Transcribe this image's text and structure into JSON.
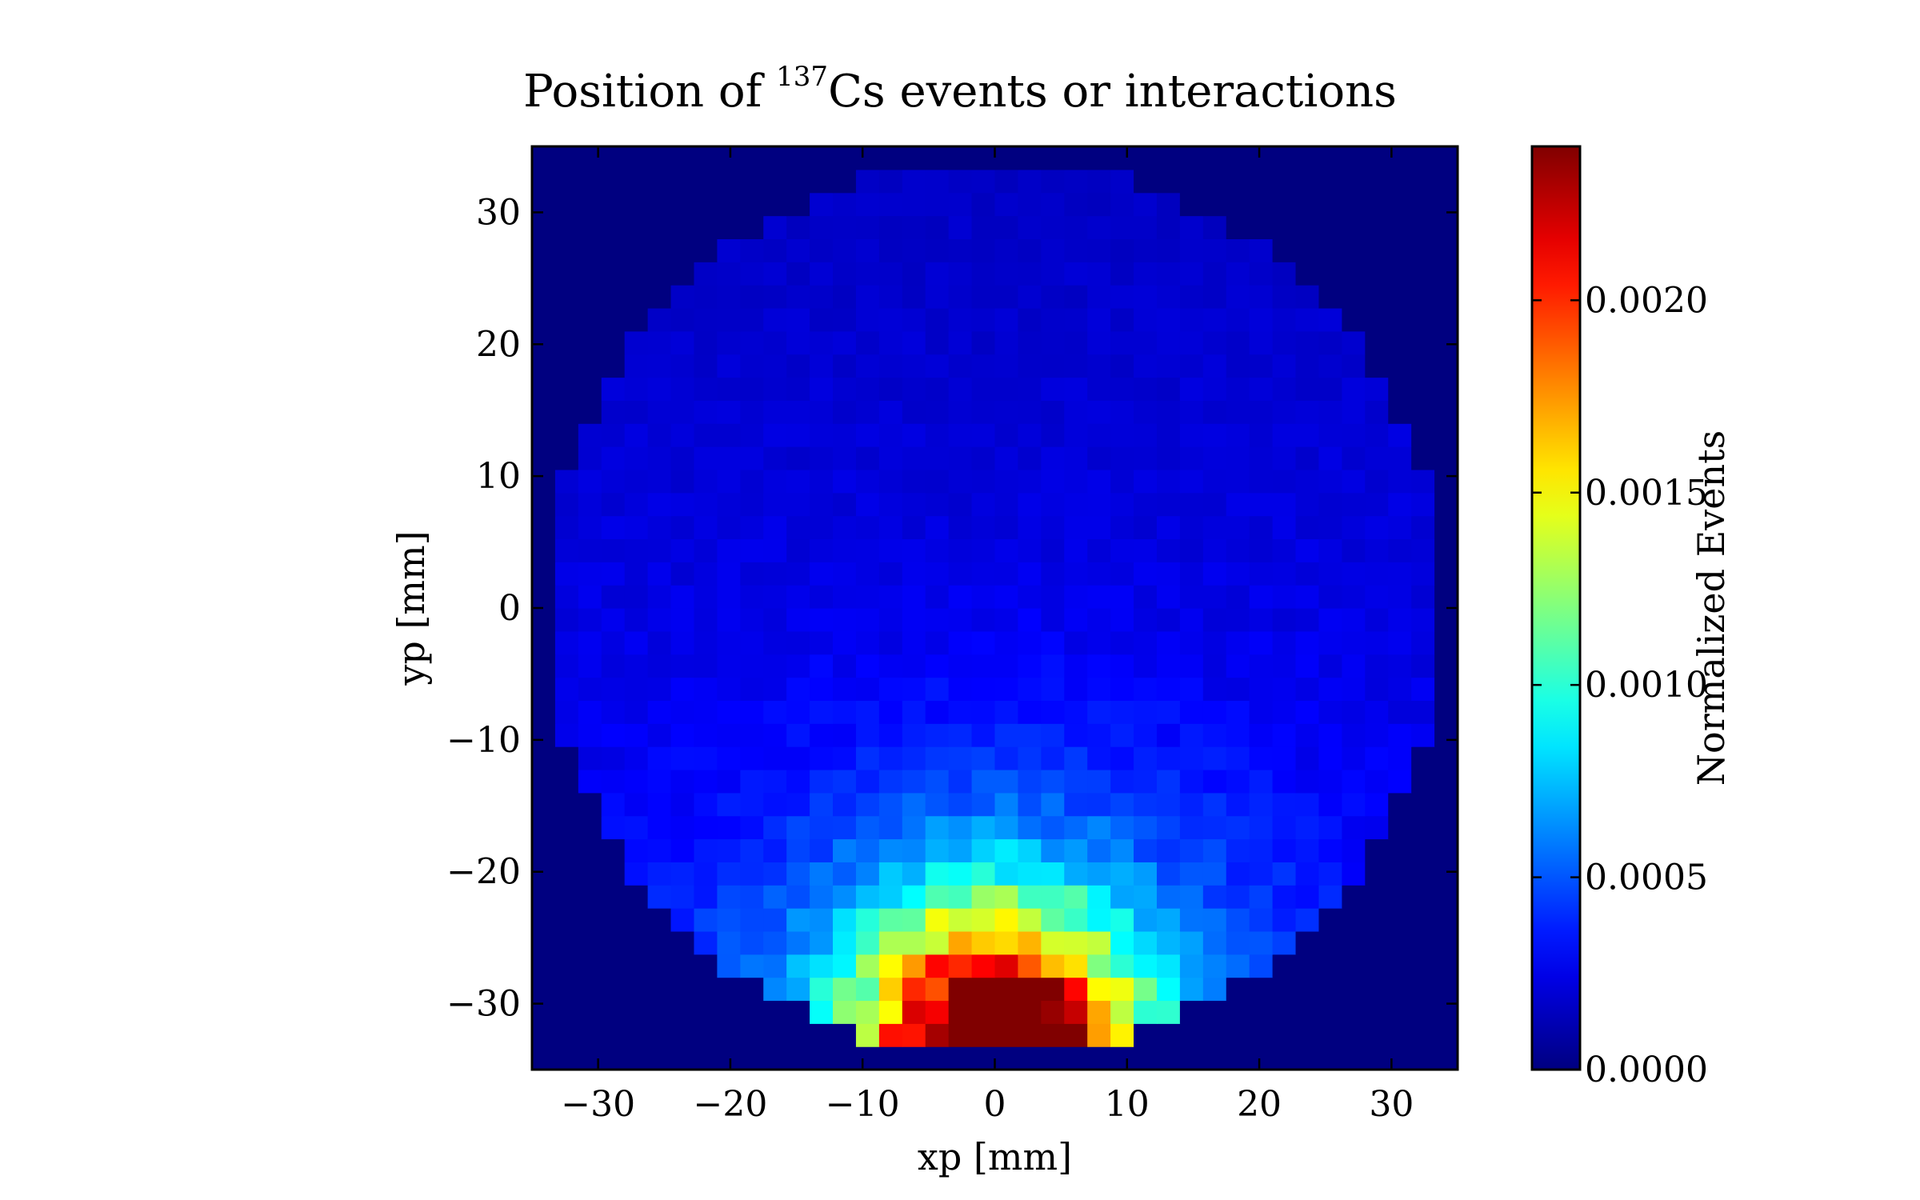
{
  "chart_data": {
    "type": "heatmap",
    "title": {
      "prefix": "Position of ",
      "superscript": "137",
      "suffix": "Cs events or interactions"
    },
    "xlabel": "xp [mm]",
    "ylabel": "yp [mm]",
    "xlim": [
      -35,
      35
    ],
    "ylim": [
      -35,
      35
    ],
    "xticks": [
      -30,
      -20,
      -10,
      0,
      10,
      20,
      30
    ],
    "yticks": [
      -30,
      -20,
      -10,
      0,
      10,
      20,
      30
    ],
    "xtick_labels": [
      "−30",
      "−20",
      "−10",
      "0",
      "10",
      "20",
      "30"
    ],
    "ytick_labels": [
      "−30",
      "−20",
      "−10",
      "0",
      "10",
      "20",
      "30"
    ],
    "bins": {
      "nx": 40,
      "ny": 40,
      "x_range": [
        -35,
        35
      ],
      "y_range": [
        -35,
        35
      ]
    },
    "colormap": "jet",
    "grid": false,
    "colorbar": {
      "label": "Normalized Events",
      "range": [
        0.0,
        0.0024
      ],
      "ticks": [
        0.0,
        0.0005,
        0.001,
        0.0015,
        0.002
      ],
      "tick_labels": [
        "0.0000",
        "0.0005",
        "0.0010",
        "0.0015",
        "0.0020"
      ]
    },
    "distribution": {
      "shape": "disk",
      "disk_radius": 34,
      "background_value": 0.0,
      "base_value_top": 0.00016,
      "base_value_bottom": 0.0003,
      "hotspot_center": [
        0,
        -35
      ],
      "hotspot_peak": 0.0024,
      "hotspot_sigma_x": 6.5,
      "hotspot_sigma_y": 7.5,
      "halo_peak": 0.0006,
      "halo_sigma": 14
    }
  }
}
